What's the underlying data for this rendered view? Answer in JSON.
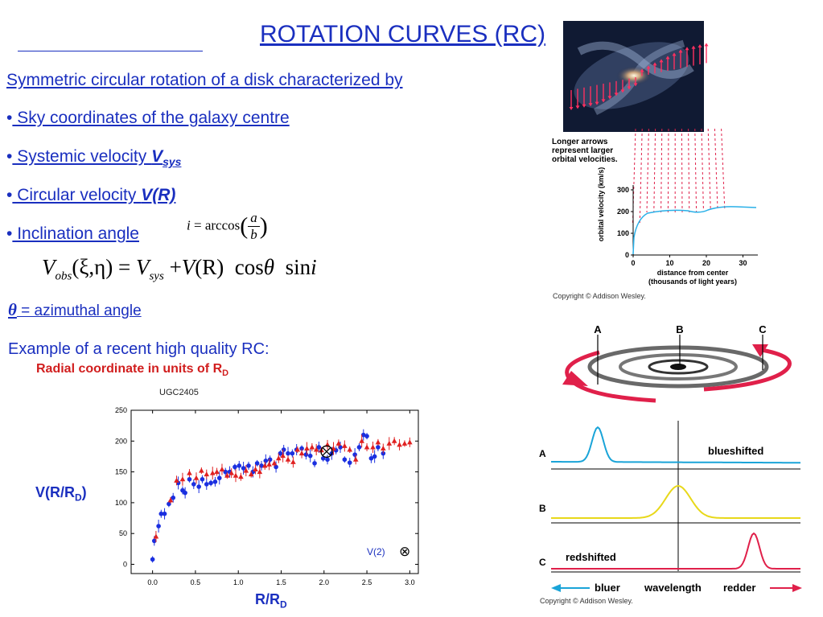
{
  "slide": {
    "title": "ROTATION CURVES (RC)",
    "intro": " Symmetric circular rotation of a disk characterized by",
    "bullets": [
      {
        "bullet": "•",
        "text": " Sky coordinates of the galaxy centre"
      },
      {
        "bullet": "•",
        "text": " Systemic velocity ",
        "symbol": "V",
        "sub": "sys"
      },
      {
        "bullet": "•",
        "text": " Circular velocity ",
        "symbol": "V(R)"
      },
      {
        "bullet": "•",
        "text": " Inclination angle"
      }
    ],
    "inclination_formula": {
      "lhs": "i",
      "eq": "=",
      "func": "arccos",
      "num": "a",
      "den": "b"
    },
    "velocity_formula": {
      "v": "V",
      "obs": "obs",
      "args": "(ξ,η)",
      "eq": "=",
      "vsys": "V",
      "sys": "sys",
      "plus": "+",
      "vr": "V",
      "r": "(R)",
      "cos": "cos",
      "theta": "θ",
      "sin": "sin",
      "i": "i"
    },
    "theta_symbol": "θ",
    "theta_text": " = azimuthal angle",
    "example_text": "Example of a recent high quality RC:",
    "radial_note": "Radial coordinate in units of R",
    "radial_note_sub": "D"
  },
  "chart_data": {
    "type": "scatter",
    "title": "UGC2405",
    "xlabel_main": "R/R",
    "xlabel_sub": "D",
    "ylabel_main": "V(R/R",
    "ylabel_sub": "D",
    "ylabel_close": ")",
    "xlim": [
      -0.25,
      3.1
    ],
    "ylim": [
      -15,
      250
    ],
    "xticks": [
      "0.0",
      "0.5",
      "1.0",
      "1.5",
      "2.0",
      "2.5",
      "3.0"
    ],
    "yticks": [
      "0",
      "50",
      "100",
      "150",
      "200",
      "250"
    ],
    "annotation": "V(2)",
    "annotation_symbol": "⊗",
    "marked_point": {
      "x": 2.03,
      "y": 183
    },
    "series": [
      {
        "color": "#1a2fe0",
        "marker": "circle",
        "x": [
          0.0,
          0.02,
          0.07,
          0.1,
          0.14,
          0.19,
          0.24,
          0.3,
          0.35,
          0.38,
          0.43,
          0.48,
          0.54,
          0.58,
          0.63,
          0.68,
          0.73,
          0.78,
          0.85,
          0.9,
          0.96,
          1.01,
          1.06,
          1.12,
          1.17,
          1.22,
          1.27,
          1.32,
          1.37,
          1.44,
          1.49,
          1.53,
          1.58,
          1.63,
          1.68,
          1.74,
          1.79,
          1.84,
          1.89,
          1.94,
          1.99,
          2.04,
          2.09,
          2.14,
          2.19,
          2.24,
          2.3,
          2.36,
          2.41,
          2.46,
          2.5,
          2.55,
          2.59,
          2.63,
          2.69
        ],
        "y": [
          8,
          38,
          62,
          82,
          82,
          98,
          108,
          132,
          120,
          116,
          138,
          130,
          126,
          138,
          130,
          132,
          134,
          140,
          150,
          150,
          158,
          160,
          156,
          160,
          150,
          164,
          160,
          168,
          170,
          158,
          180,
          186,
          180,
          180,
          186,
          188,
          178,
          176,
          164,
          190,
          172,
          170,
          180,
          185,
          190,
          170,
          165,
          178,
          190,
          210,
          208,
          172,
          175,
          190,
          180
        ]
      },
      {
        "color": "#e02020",
        "marker": "triangle",
        "x": [
          0.04,
          0.21,
          0.28,
          0.35,
          0.43,
          0.51,
          0.57,
          0.63,
          0.7,
          0.75,
          0.81,
          0.87,
          0.92,
          0.97,
          1.03,
          1.09,
          1.15,
          1.2,
          1.25,
          1.31,
          1.36,
          1.42,
          1.47,
          1.52,
          1.58,
          1.64,
          1.69,
          1.74,
          1.8,
          1.86,
          1.91,
          1.97,
          2.04,
          2.11,
          2.17,
          2.24,
          2.3,
          2.37,
          2.44,
          2.5,
          2.57,
          2.63,
          2.69,
          2.76,
          2.82,
          2.88,
          2.94,
          3.0
        ],
        "y": [
          45,
          104,
          136,
          138,
          148,
          140,
          152,
          146,
          148,
          150,
          154,
          144,
          148,
          144,
          142,
          152,
          146,
          154,
          150,
          160,
          162,
          164,
          172,
          176,
          170,
          166,
          186,
          180,
          188,
          190,
          186,
          185,
          194,
          188,
          196,
          192,
          186,
          170,
          200,
          190,
          190,
          198,
          188,
          196,
          200,
          194,
          196,
          198
        ]
      }
    ]
  },
  "galaxy_figure": {
    "note": "Longer arrows\nrepresent larger\norbital velocities.",
    "ylabel": "orbital velocity (km/s)",
    "xlabel_line1": "distance from center",
    "xlabel_line2": "(thousands of light years)",
    "xticks": [
      "0",
      "10",
      "20",
      "30"
    ],
    "yticks": [
      "0",
      "100",
      "200",
      "300"
    ],
    "copyright": "Copyright © Addison Wesley."
  },
  "doppler_figure": {
    "labels_top": [
      "A",
      "B",
      "C"
    ],
    "rows": [
      "A",
      "B",
      "C"
    ],
    "blueshifted": "blueshifted",
    "redshifted": "redshifted",
    "bluer": "bluer",
    "wavelength": "wavelength",
    "redder": "redder",
    "copyright": "Copyright © Addison Wesley.",
    "colors": {
      "A": "#1aa4d8",
      "B": "#e8d81a",
      "C": "#e0204a"
    }
  }
}
